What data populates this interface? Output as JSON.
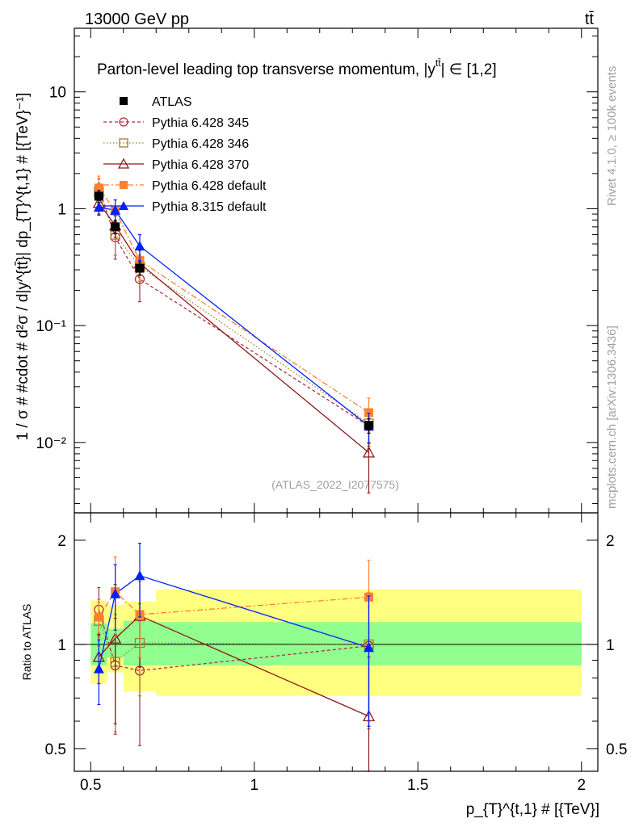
{
  "header": {
    "energy_label": "13000 GeV pp",
    "process_label": "tt̄"
  },
  "side_labels": {
    "rivet": "Rivet 4.1.0, ≥ 100k events",
    "mcplots": "mcplots.cern.ch [arXiv:1306.3436]"
  },
  "analysis_id": "(ATLAS_2022_I2077575)",
  "chart_data": {
    "type": "line",
    "title": "Parton-level leading top transverse momentum, |y^{tt̄}| ∈ [1,2]",
    "title_main": "Parton-level leading top transverse momentum, |y",
    "title_sup": "tt̄",
    "title_end": "| ∈ [1,2]",
    "xlabel": "p_{T}^{t,1} # [{TeV}]",
    "ylabel_main": "1 / σ # #cdot # d²σ / d|y^{tt̄}| dp_{T}^{t,1} # [{TeV}⁻¹]",
    "ylabel_ratio": "Ratio to ATLAS",
    "xlim": [
      0.45,
      2.05
    ],
    "ylim_main": [
      0.0025,
      35
    ],
    "ylim_ratio": [
      0.43,
      2.4
    ],
    "x_ticks": [
      {
        "value": 0.5,
        "label": "0.5"
      },
      {
        "value": 1,
        "label": "1"
      },
      {
        "value": 1.5,
        "label": "1.5"
      },
      {
        "value": 2,
        "label": "2"
      }
    ],
    "y_ticks_main": [
      {
        "value": 10,
        "label": "10"
      },
      {
        "value": 1,
        "label": "1"
      },
      {
        "value": 0.1,
        "label": "10⁻¹"
      },
      {
        "value": 0.01,
        "label": "10⁻²"
      }
    ],
    "y_ticks_ratio": [
      {
        "value": 2,
        "label": "2"
      },
      {
        "value": 1,
        "label": "1"
      },
      {
        "value": 0.5,
        "label": "0.5"
      }
    ],
    "bins": [
      [
        0.5,
        0.55
      ],
      [
        0.55,
        0.6
      ],
      [
        0.6,
        0.7
      ],
      [
        0.7,
        2.0
      ]
    ],
    "ratio_band_green": [
      [
        0.87,
        1.15
      ],
      [
        0.92,
        1.11
      ],
      [
        0.87,
        1.17
      ],
      [
        0.87,
        1.16
      ]
    ],
    "ratio_band_yellow": [
      [
        0.77,
        1.34
      ],
      [
        0.83,
        1.3
      ],
      [
        0.73,
        1.33
      ],
      [
        0.71,
        1.44
      ]
    ],
    "legend": [
      "ATLAS",
      "Pythia 6.428 345",
      "Pythia 6.428 346",
      "Pythia 6.428 370",
      "Pythia 6.428 default",
      "Pythia 8.315 default"
    ],
    "series": [
      {
        "name": "ATLAS",
        "color": "#000000",
        "marker": "square-filled",
        "dash": "none",
        "x": [
          0.525,
          0.575,
          0.65,
          1.35
        ],
        "y": [
          1.28,
          0.7,
          0.31,
          0.014
        ],
        "yerr": [
          0.15,
          0.09,
          0.04,
          0.002
        ],
        "ratio": [
          1,
          1,
          1,
          1
        ],
        "ratio_err": [
          0,
          0,
          0,
          0
        ]
      },
      {
        "name": "Pythia 6.428 345",
        "color": "#b03040",
        "marker": "circle-open",
        "dash": "4,3",
        "x": [
          0.525,
          0.575,
          0.65,
          1.35
        ],
        "y": [
          1.5,
          0.57,
          0.25,
          0.0138
        ],
        "yerr": [
          0.3,
          0.2,
          0.09,
          0.0045
        ],
        "ratio": [
          1.26,
          0.87,
          0.84,
          0.99
        ],
        "ratio_err": [
          0.2,
          0.32,
          0.33,
          0.42
        ]
      },
      {
        "name": "Pythia 6.428 346",
        "color": "#a08030",
        "marker": "square-open",
        "dash": "1.5,2.5",
        "x": [
          0.525,
          0.575,
          0.65,
          1.35
        ],
        "y": [
          1.37,
          0.6,
          0.32,
          0.0145
        ],
        "yerr": [
          0.28,
          0.2,
          0.08,
          0.0045
        ],
        "ratio": [
          1.17,
          0.89,
          1.01,
          1.0
        ],
        "ratio_err": [
          0.18,
          0.33,
          0.3,
          0.4
        ]
      },
      {
        "name": "Pythia 6.428 370",
        "color": "#8b1a1a",
        "marker": "triangle-open",
        "dash": "none",
        "x": [
          0.525,
          0.575,
          0.65,
          1.35
        ],
        "y": [
          1.12,
          0.72,
          0.34,
          0.0082
        ],
        "yerr": [
          0.22,
          0.15,
          0.1,
          0.0045
        ],
        "ratio": [
          0.92,
          1.04,
          1.21,
          0.62
        ],
        "ratio_err": [
          0.15,
          0.45,
          0.35,
          0.3
        ]
      },
      {
        "name": "Pythia 6.428 default",
        "color": "#ff8030",
        "marker": "square-filled",
        "dash": "7,3,2,3",
        "x": [
          0.525,
          0.575,
          0.65,
          1.35
        ],
        "y": [
          1.5,
          0.96,
          0.36,
          0.018
        ],
        "yerr": [
          0.4,
          0.23,
          0.12,
          0.006
        ],
        "ratio": [
          1.2,
          1.42,
          1.22,
          1.37
        ],
        "ratio_err": [
          0.12,
          0.37,
          0.3,
          0.38
        ]
      },
      {
        "name": "Pythia 8.315 default",
        "color": "#0020ff",
        "marker": "triangle-filled",
        "dash": "none",
        "x": [
          0.525,
          0.575,
          0.65,
          1.35
        ],
        "y": [
          1.03,
          0.97,
          0.48,
          0.0138
        ],
        "yerr": [
          0.15,
          0.22,
          0.12,
          0.004
        ],
        "ratio": [
          0.85,
          1.4,
          1.58,
          0.98
        ],
        "ratio_err": [
          0.18,
          0.3,
          0.38,
          0.4
        ]
      }
    ]
  }
}
